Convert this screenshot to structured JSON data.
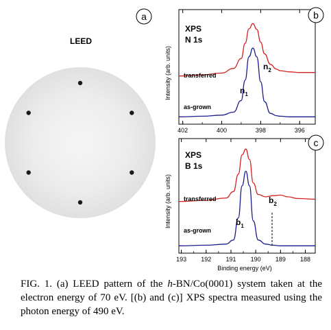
{
  "panels": {
    "a": {
      "badge": "a",
      "title": "LEED",
      "spots": 6
    },
    "b": {
      "badge": "b",
      "title_line1": "XPS",
      "title_line2": "N 1s",
      "ylabel": "Intensity (arb. units)",
      "label_top": "transferred",
      "label_bottom": "as-grown",
      "peak_top_main": "n",
      "peak_top_sub": "2",
      "peak_bottom_main": "n",
      "peak_bottom_sub": "1",
      "xticks": [
        "402",
        "400",
        "398",
        "396"
      ]
    },
    "c": {
      "badge": "c",
      "title_line1": "XPS",
      "title_line2": "B 1s",
      "ylabel": "Intensity (arb. units)",
      "label_top": "transferred",
      "label_bottom": "as-grown",
      "peak_top_main": "b",
      "peak_top_sub": "2",
      "peak_bottom_main": "b",
      "peak_bottom_sub": "1",
      "xticks": [
        "193",
        "192",
        "191",
        "190",
        "189",
        "188"
      ],
      "xlabel": "Binding energy (eV)"
    }
  },
  "chart_data": [
    {
      "type": "line",
      "title": "XPS N 1s",
      "ylabel": "Intensity (arb. units)",
      "xlim": [
        402.2,
        395.2
      ],
      "series": [
        {
          "name": "transferred",
          "color": "#d42020",
          "x": [
            402.2,
            401.0,
            400.0,
            399.4,
            399.0,
            398.8,
            398.6,
            398.4,
            398.2,
            398.0,
            397.8,
            397.5,
            397.2,
            397.0,
            396.5,
            396.0,
            395.2
          ],
          "y": [
            0.72,
            0.74,
            0.77,
            0.85,
            1.02,
            1.28,
            1.53,
            1.62,
            1.52,
            1.3,
            1.1,
            0.92,
            0.84,
            0.81,
            0.79,
            0.78,
            0.78
          ]
        },
        {
          "name": "as-grown",
          "color": "#1a1a8c",
          "x": [
            402.2,
            401.0,
            400.0,
            399.4,
            399.0,
            398.8,
            398.6,
            398.4,
            398.2,
            398.0,
            397.8,
            397.5,
            397.2,
            397.0,
            396.5,
            396.0,
            395.2
          ],
          "y": [
            0.02,
            0.03,
            0.05,
            0.1,
            0.3,
            0.65,
            1.05,
            1.2,
            1.05,
            0.62,
            0.28,
            0.08,
            0.04,
            0.03,
            0.02,
            0.02,
            0.02
          ]
        }
      ]
    },
    {
      "type": "line",
      "title": "XPS B 1s",
      "xlabel": "Binding energy (eV)",
      "ylabel": "Intensity (arb. units)",
      "xlim": [
        193.1,
        187.6
      ],
      "series": [
        {
          "name": "transferred",
          "color": "#d42020",
          "x": [
            193.1,
            192.0,
            191.2,
            190.9,
            190.7,
            190.55,
            190.4,
            190.25,
            190.1,
            189.9,
            189.6,
            189.3,
            189.0,
            188.7,
            188.3,
            187.6
          ],
          "y": [
            0.78,
            0.8,
            0.84,
            0.95,
            1.25,
            1.58,
            1.68,
            1.5,
            1.1,
            0.9,
            0.86,
            0.88,
            0.89,
            0.86,
            0.83,
            0.82
          ]
        },
        {
          "name": "as-grown",
          "color": "#1a1a8c",
          "x": [
            193.1,
            192.0,
            191.2,
            190.9,
            190.7,
            190.55,
            190.4,
            190.25,
            190.1,
            189.9,
            189.6,
            189.3,
            189.0,
            188.7,
            188.3,
            187.6
          ],
          "y": [
            0.02,
            0.03,
            0.05,
            0.12,
            0.5,
            1.05,
            1.3,
            1.05,
            0.45,
            0.12,
            0.05,
            0.03,
            0.02,
            0.02,
            0.02,
            0.02
          ]
        }
      ]
    }
  ],
  "caption": {
    "fig": "FIG. 1.",
    "part1": " (a) LEED pattern of the ",
    "italic": "h",
    "part2": "-BN/Co(0001) system taken at the electron energy of 70 eV. [(b) and (c)] XPS spectra measured using the photon energy of 490 eV."
  }
}
